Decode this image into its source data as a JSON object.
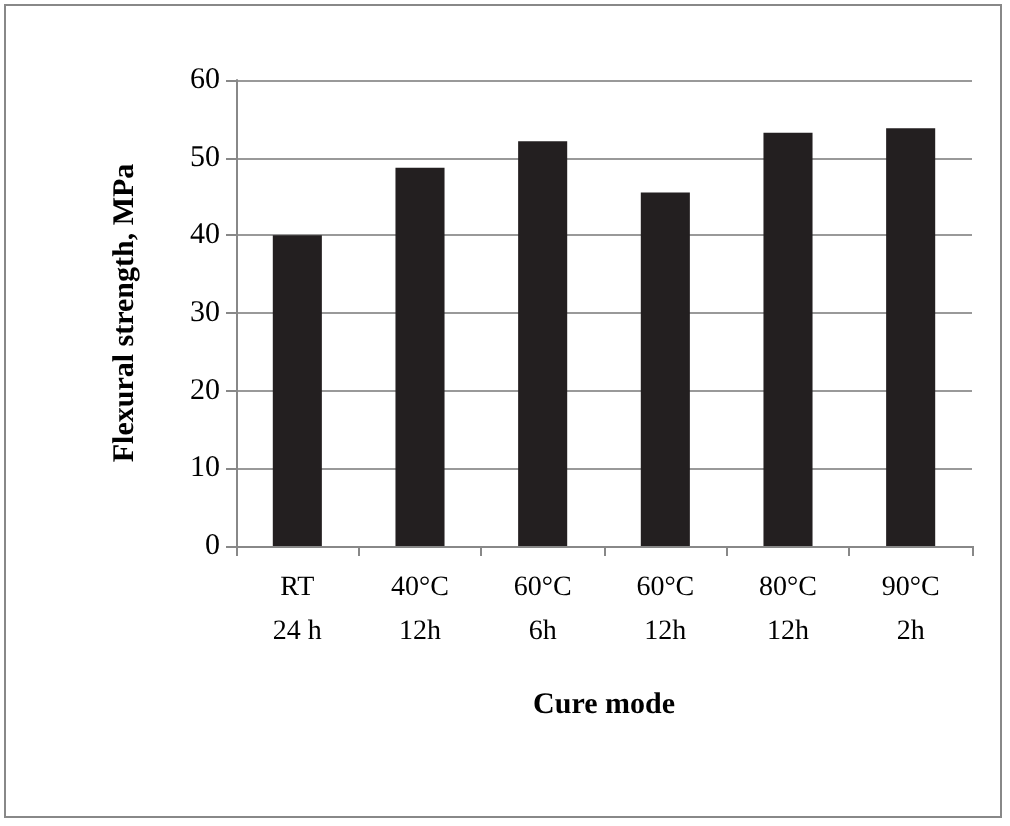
{
  "chart_data": {
    "type": "bar",
    "xlabel": "Cure mode",
    "ylabel": "Flexural strength, MPa",
    "categories": [
      "RT\n24 h",
      "40°C\n12h",
      "60°C\n6h",
      "60°C\n12h",
      "80°C\n12h",
      "90°C\n2h"
    ],
    "values": [
      40,
      48.7,
      52.1,
      45.5,
      53.2,
      53.8
    ],
    "color": "#231f20",
    "ylim": [
      0,
      60
    ],
    "yticks": [
      0,
      10,
      20,
      30,
      40,
      50,
      60
    ],
    "grid": "y"
  }
}
